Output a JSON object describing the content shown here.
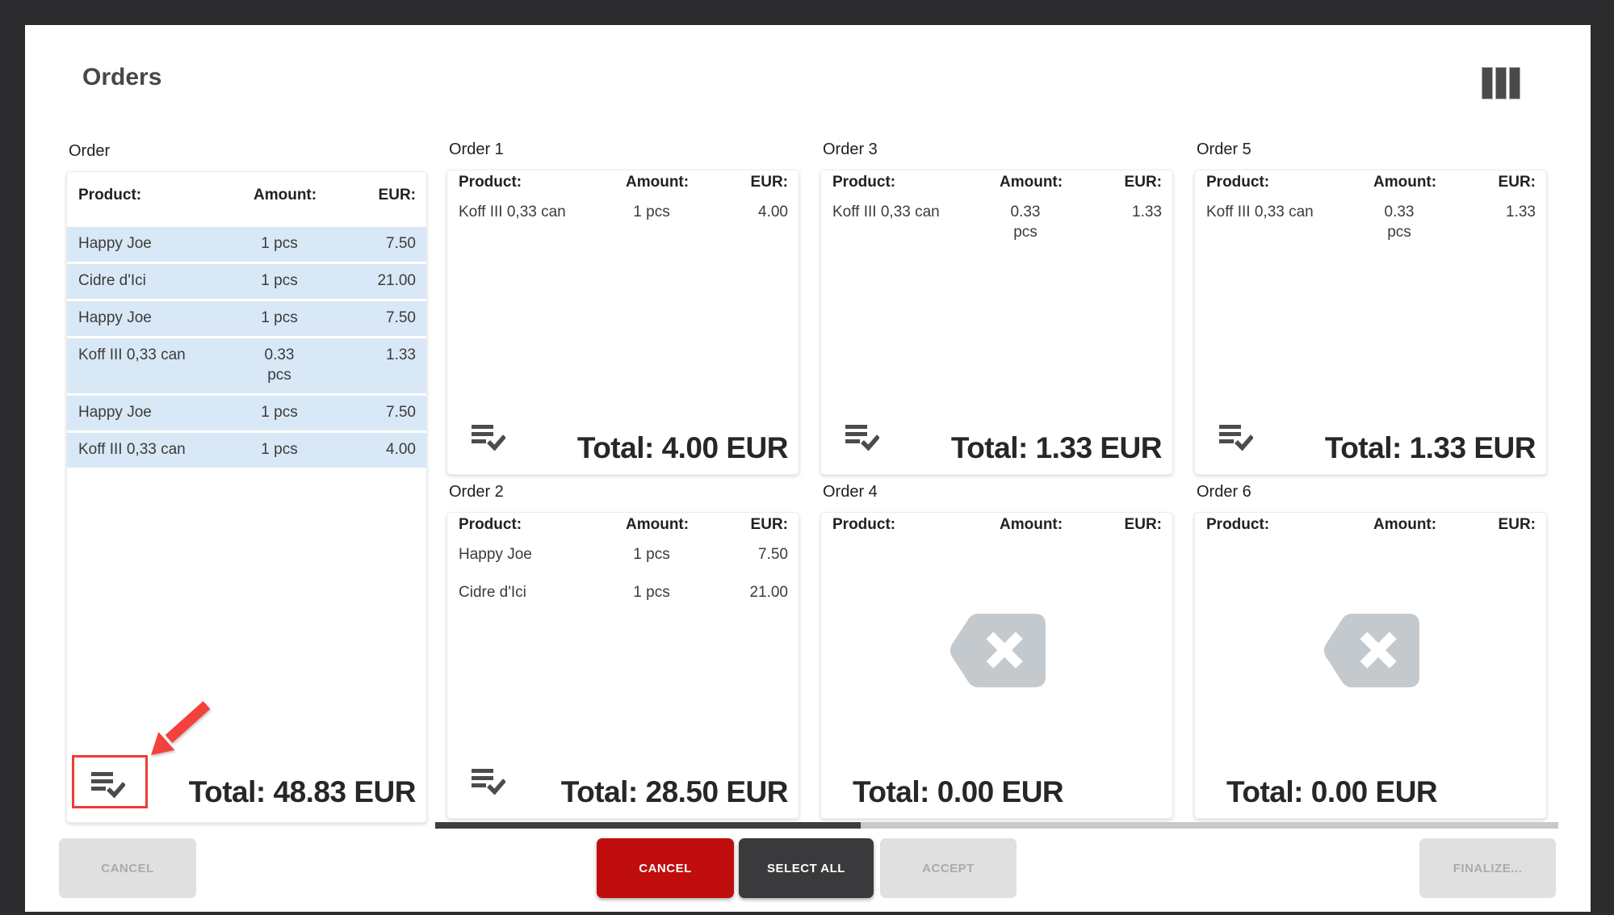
{
  "title": "Orders",
  "table_headers": {
    "product": "Product:",
    "amount": "Amount:",
    "eur": "EUR:"
  },
  "main_order": {
    "label": "Order",
    "items": [
      {
        "product": "Happy Joe",
        "amount": "1 pcs",
        "eur": "7.50"
      },
      {
        "product": "Cidre d'Ici",
        "amount": "1 pcs",
        "eur": "21.00"
      },
      {
        "product": "Happy Joe",
        "amount": "1 pcs",
        "eur": "7.50"
      },
      {
        "product": "Koff III 0,33 can",
        "amount": "0.33 pcs",
        "eur": "1.33"
      },
      {
        "product": "Happy Joe",
        "amount": "1 pcs",
        "eur": "7.50"
      },
      {
        "product": "Koff III 0,33 can",
        "amount": "1 pcs",
        "eur": "4.00"
      }
    ],
    "total": "Total: 48.83 EUR"
  },
  "orders": [
    {
      "label": "Order 1",
      "items": [
        {
          "product": "Koff III 0,33 can",
          "amount": "1 pcs",
          "eur": "4.00"
        }
      ],
      "total": "Total: 4.00 EUR",
      "empty": false
    },
    {
      "label": "Order 3",
      "items": [
        {
          "product": "Koff III 0,33 can",
          "amount": "0.33 pcs",
          "eur": "1.33"
        }
      ],
      "total": "Total: 1.33 EUR",
      "empty": false
    },
    {
      "label": "Order 5",
      "items": [
        {
          "product": "Koff III 0,33 can",
          "amount": "0.33 pcs",
          "eur": "1.33"
        }
      ],
      "total": "Total: 1.33 EUR",
      "empty": false
    },
    {
      "label": "Order 2",
      "items": [
        {
          "product": "Happy Joe",
          "amount": "1 pcs",
          "eur": "7.50"
        },
        {
          "product": "Cidre d'Ici",
          "amount": "1 pcs",
          "eur": "21.00"
        }
      ],
      "total": "Total: 28.50 EUR",
      "empty": false
    },
    {
      "label": "Order 4",
      "items": [],
      "total": "Total: 0.00 EUR",
      "empty": true
    },
    {
      "label": "Order 6",
      "items": [],
      "total": "Total: 0.00 EUR",
      "empty": true
    }
  ],
  "buttons": {
    "cancel_left": "CANCEL",
    "cancel": "CANCEL",
    "select_all": "SELECT ALL",
    "accept": "ACCEPT",
    "finalize": "FINALIZE..."
  },
  "colors": {
    "background": "#2c2c2e",
    "highlight_row": "#d9e8f6",
    "accent_red": "#c00d0d",
    "dark_button": "#3a3a3c",
    "annotation_red": "#ef3b35"
  }
}
